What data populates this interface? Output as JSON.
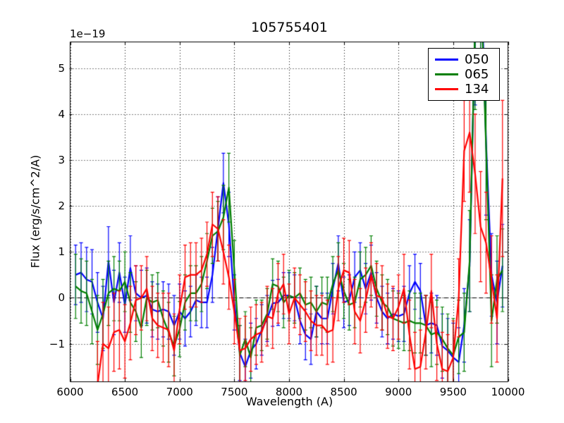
{
  "chart_data": {
    "type": "line",
    "title": "105755401",
    "xlabel": "Wavelength (A)",
    "ylabel": "Flux (erg/s/cm^2/A)",
    "y_offset_text": "1e−19",
    "xlim": [
      6000,
      10000
    ],
    "ylim": [
      -1.82,
      5.58
    ],
    "xticks": [
      6000,
      6500,
      7000,
      7500,
      8000,
      8500,
      9000,
      9500,
      10000
    ],
    "xtick_labels": [
      "6000",
      "6500",
      "7000",
      "7500",
      "8000",
      "8500",
      "9000",
      "9500",
      "10000"
    ],
    "yticks": [
      -1,
      0,
      1,
      2,
      3,
      4,
      5
    ],
    "ytick_labels": [
      "−1",
      "0",
      "1",
      "2",
      "3",
      "4",
      "5"
    ],
    "grid": true,
    "grid_style": "dotted",
    "zero_line": true,
    "legend_position": "upper right",
    "x": [
      6050,
      6100,
      6150,
      6200,
      6250,
      6300,
      6350,
      6400,
      6450,
      6500,
      6550,
      6600,
      6650,
      6700,
      6750,
      6800,
      6850,
      6900,
      6950,
      7000,
      7050,
      7100,
      7150,
      7200,
      7250,
      7300,
      7350,
      7400,
      7450,
      7500,
      7550,
      7600,
      7650,
      7700,
      7750,
      7800,
      7850,
      7900,
      7950,
      8000,
      8050,
      8100,
      8150,
      8200,
      8250,
      8300,
      8350,
      8400,
      8450,
      8500,
      8550,
      8600,
      8650,
      8700,
      8750,
      8800,
      8850,
      8900,
      8950,
      9000,
      9050,
      9100,
      9150,
      9200,
      9250,
      9300,
      9350,
      9400,
      9450,
      9500,
      9550,
      9600,
      9650,
      9700,
      9750,
      9800,
      9850,
      9900,
      9950
    ],
    "series": [
      {
        "name": "050",
        "color": "#0000ff",
        "values": [
          0.5,
          0.55,
          0.4,
          0.35,
          -0.1,
          -0.45,
          0.8,
          -0.1,
          0.55,
          -0.15,
          0.65,
          0.1,
          0.0,
          0.05,
          -0.25,
          -0.3,
          -0.25,
          -0.3,
          -0.6,
          -0.3,
          -0.45,
          -0.3,
          -0.05,
          -0.1,
          -0.1,
          0.5,
          1.5,
          2.5,
          1.6,
          -0.1,
          -1.2,
          -1.5,
          -1.15,
          -1.0,
          -0.7,
          -0.45,
          -0.12,
          -0.1,
          0.05,
          0.05,
          0.0,
          -0.5,
          -0.8,
          -0.9,
          -0.3,
          -0.45,
          -0.45,
          0.2,
          0.75,
          -0.1,
          -0.05,
          0.45,
          0.6,
          0.2,
          0.55,
          0.0,
          -0.3,
          -0.45,
          -0.35,
          -0.4,
          -0.35,
          0.1,
          0.35,
          0.15,
          -0.6,
          -0.55,
          -0.6,
          -1.05,
          -1.15,
          -1.3,
          -1.4,
          -0.6,
          0.7,
          6.0,
          7.5,
          3.4,
          0.5,
          -0.1,
          0.7
        ],
        "errors": [
          0.65,
          0.65,
          0.7,
          0.7,
          0.65,
          0.7,
          0.75,
          0.7,
          0.65,
          0.6,
          0.7,
          0.6,
          0.6,
          0.6,
          0.6,
          0.6,
          0.6,
          0.6,
          0.65,
          0.6,
          0.6,
          0.55,
          0.55,
          0.55,
          0.55,
          0.6,
          0.7,
          0.65,
          0.7,
          0.6,
          0.6,
          0.6,
          0.6,
          0.55,
          0.55,
          0.5,
          0.5,
          0.5,
          0.5,
          0.5,
          0.5,
          0.5,
          0.55,
          0.55,
          0.55,
          0.55,
          0.55,
          0.55,
          0.6,
          0.55,
          0.55,
          0.55,
          0.6,
          0.55,
          0.6,
          0.55,
          0.55,
          0.55,
          0.55,
          0.55,
          0.6,
          0.6,
          0.6,
          0.6,
          0.65,
          0.65,
          0.65,
          0.7,
          0.7,
          0.75,
          0.75,
          0.8,
          1.0,
          1.8,
          2.2,
          1.6,
          0.9,
          0.9,
          0.9
        ]
      },
      {
        "name": "065",
        "color": "#007f00",
        "values": [
          0.25,
          0.15,
          0.1,
          -0.3,
          -0.7,
          -0.35,
          0.1,
          0.2,
          0.15,
          0.35,
          -0.1,
          -0.3,
          -0.65,
          0.0,
          -0.1,
          -0.05,
          -0.45,
          -0.75,
          -1.05,
          -0.68,
          -0.1,
          0.1,
          0.1,
          0.3,
          0.8,
          1.35,
          1.45,
          1.75,
          2.4,
          0.6,
          -1.25,
          -0.9,
          -1.3,
          -0.65,
          -0.6,
          -0.35,
          0.3,
          0.25,
          -0.1,
          0.05,
          0.0,
          0.1,
          -0.15,
          -0.1,
          -0.3,
          -0.1,
          -0.15,
          0.3,
          0.6,
          0.15,
          -0.15,
          -0.1,
          0.4,
          0.5,
          0.7,
          0.2,
          -0.1,
          -0.2,
          -0.45,
          -0.5,
          -0.55,
          -0.5,
          -0.55,
          -0.55,
          -0.6,
          -0.8,
          -0.75,
          -0.9,
          -1.1,
          -1.25,
          -0.85,
          -0.75,
          0.8,
          6.0,
          7.0,
          3.3,
          -0.5,
          0.4,
          0.6
        ],
        "errors": [
          0.7,
          0.7,
          0.7,
          0.7,
          0.75,
          0.75,
          0.7,
          0.7,
          0.65,
          0.65,
          0.65,
          0.65,
          0.65,
          0.6,
          0.6,
          0.6,
          0.6,
          0.65,
          0.65,
          0.6,
          0.6,
          0.6,
          0.6,
          0.6,
          0.6,
          0.6,
          0.65,
          0.7,
          0.75,
          0.65,
          0.65,
          0.6,
          0.65,
          0.6,
          0.55,
          0.55,
          0.55,
          0.55,
          0.55,
          0.55,
          0.55,
          0.55,
          0.55,
          0.55,
          0.55,
          0.55,
          0.6,
          0.6,
          0.6,
          0.6,
          0.55,
          0.55,
          0.6,
          0.6,
          0.65,
          0.6,
          0.6,
          0.6,
          0.6,
          0.6,
          0.6,
          0.65,
          0.65,
          0.65,
          0.65,
          0.7,
          0.7,
          0.7,
          0.75,
          0.8,
          0.8,
          0.85,
          1.1,
          1.9,
          2.1,
          1.6,
          1.0,
          0.95,
          0.9
        ]
      },
      {
        "name": "134",
        "color": "#ff0000",
        "values": [
          null,
          null,
          null,
          null,
          -1.9,
          -1.0,
          -1.1,
          -0.75,
          -0.7,
          -0.95,
          -0.55,
          -0.05,
          0.0,
          0.2,
          -0.45,
          -0.6,
          -0.65,
          -0.7,
          -1.15,
          -0.25,
          0.45,
          0.5,
          0.5,
          0.6,
          0.95,
          1.6,
          1.5,
          1.0,
          0.45,
          -0.3,
          -1.15,
          -1.1,
          -0.9,
          -0.8,
          -0.75,
          -0.4,
          -0.45,
          0.1,
          0.3,
          -0.35,
          0.0,
          -0.15,
          -0.3,
          -0.5,
          -0.6,
          -0.6,
          -0.75,
          -0.7,
          0.2,
          0.6,
          0.55,
          -0.3,
          -0.5,
          -0.05,
          0.5,
          0.05,
          0.0,
          -0.4,
          -0.45,
          -0.2,
          0.2,
          -0.8,
          -1.55,
          -1.5,
          -0.75,
          0.15,
          -1.0,
          -1.55,
          -1.6,
          -1.3,
          0.0,
          3.2,
          3.6,
          2.7,
          1.55,
          1.2,
          0.4,
          -0.45,
          2.6
        ],
        "errors": [
          null,
          null,
          null,
          null,
          0.95,
          0.9,
          0.9,
          0.85,
          0.85,
          0.8,
          0.8,
          0.75,
          0.7,
          0.7,
          0.7,
          0.7,
          0.75,
          0.8,
          0.8,
          0.75,
          0.7,
          0.7,
          0.7,
          0.7,
          0.7,
          0.7,
          0.7,
          0.7,
          0.7,
          0.7,
          0.7,
          0.7,
          0.7,
          0.65,
          0.65,
          0.65,
          0.65,
          0.65,
          0.65,
          0.65,
          0.65,
          0.65,
          0.65,
          0.65,
          0.65,
          0.65,
          0.7,
          0.7,
          0.7,
          0.7,
          0.7,
          0.7,
          0.7,
          0.7,
          0.7,
          0.7,
          0.7,
          0.7,
          0.7,
          0.7,
          0.75,
          0.75,
          0.8,
          0.8,
          0.8,
          0.8,
          0.8,
          0.8,
          0.8,
          0.8,
          0.85,
          1.1,
          1.3,
          1.3,
          1.2,
          1.1,
          0.95,
          0.95,
          1.7
        ]
      }
    ]
  }
}
